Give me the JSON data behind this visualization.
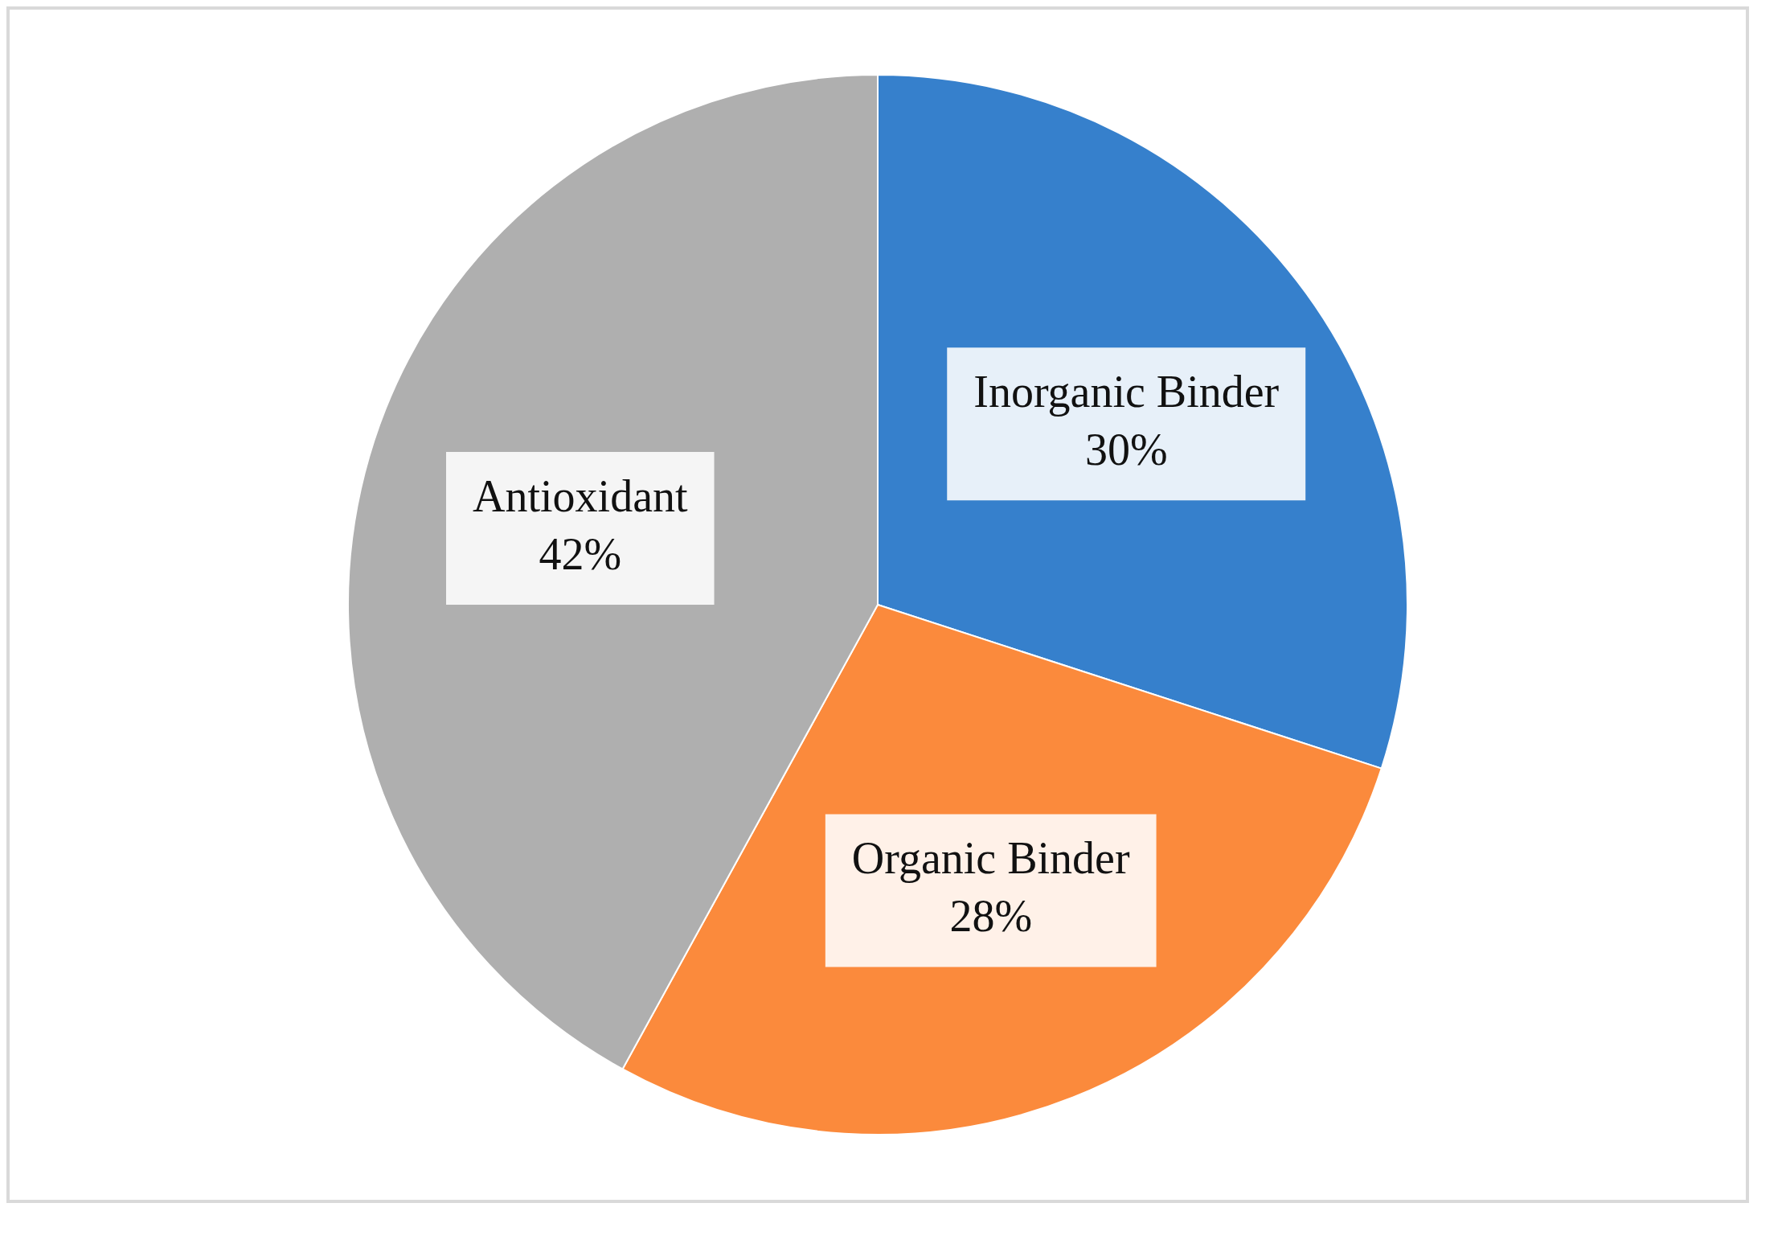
{
  "chart_data": {
    "type": "pie",
    "categories": [
      "Inorganic Binder",
      "Organic Binder",
      "Antioxidant"
    ],
    "values": [
      30,
      28,
      42
    ],
    "colors": [
      "#3680cc",
      "#fb8a3c",
      "#afafaf"
    ],
    "value_labels": [
      "30%",
      "28%",
      "42%"
    ],
    "legend": false
  }
}
